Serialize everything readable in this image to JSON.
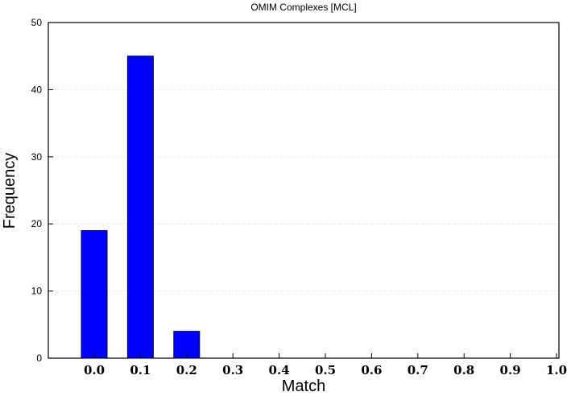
{
  "chart_data": {
    "type": "bar",
    "title": "OMIM Complexes [MCL]",
    "xlabel": "Match",
    "ylabel": "Frequency",
    "categories": [
      "0.0",
      "0.1",
      "0.2",
      "0.3",
      "0.4",
      "0.5",
      "0.6",
      "0.7",
      "0.8",
      "0.9",
      "1.0"
    ],
    "values": [
      19,
      45,
      4,
      0,
      0,
      0,
      0,
      0,
      0,
      0,
      0
    ],
    "ylim": [
      0,
      50
    ],
    "yticks": [
      0,
      10,
      20,
      30,
      40,
      50
    ],
    "grid": "horizontal",
    "legend": "none",
    "colors": {
      "bar_fill": "#0000ff",
      "bar_stroke": "#000033",
      "axis": "#000000",
      "grid": "#e6e6e6",
      "background": "#ffffff"
    }
  }
}
